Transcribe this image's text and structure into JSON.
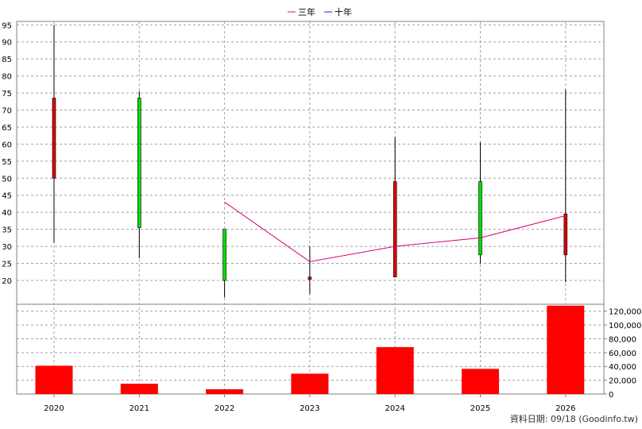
{
  "chart_data": {
    "type": "candlestick",
    "categories": [
      "2020",
      "2021",
      "2022",
      "2023",
      "2024",
      "2025",
      "2026"
    ],
    "price": {
      "ylim": [
        13,
        96
      ],
      "yticks": [
        20,
        25,
        30,
        35,
        40,
        45,
        50,
        55,
        60,
        65,
        70,
        75,
        80,
        85,
        90,
        95
      ],
      "candles": [
        {
          "year": "2020",
          "open": 50,
          "close": 73.5,
          "high": 95,
          "low": 31,
          "color": "#dd0000"
        },
        {
          "year": "2021",
          "open": 73.5,
          "close": 35.5,
          "high": 75.5,
          "low": 26.5,
          "color": "#00dd00"
        },
        {
          "year": "2022",
          "open": 35,
          "close": 20,
          "high": 35,
          "low": 15,
          "color": "#00dd00"
        },
        {
          "year": "2023",
          "open": 20.3,
          "close": 21,
          "high": 30,
          "low": 16,
          "color": "#dd0000"
        },
        {
          "year": "2024",
          "open": 21,
          "close": 49,
          "high": 62,
          "low": 21,
          "color": "#dd0000"
        },
        {
          "year": "2025",
          "open": 49,
          "close": 27.5,
          "high": 60.5,
          "low": 25,
          "color": "#00dd00"
        },
        {
          "year": "2026",
          "open": 27.5,
          "close": 39.5,
          "high": 76,
          "low": 19.5,
          "color": "#dd0000"
        }
      ],
      "series": [
        {
          "name": "三年",
          "color": "#dd0077",
          "x": [
            "2022",
            "2023",
            "2024",
            "2025",
            "2026"
          ],
          "values": [
            43,
            25.5,
            30,
            32.5,
            39
          ]
        },
        {
          "name": "十年",
          "color": "#6600cc",
          "x": [],
          "values": []
        }
      ]
    },
    "volume": {
      "ylim": [
        0,
        130000
      ],
      "yticks": [
        0,
        20000,
        40000,
        60000,
        80000,
        100000,
        120000
      ],
      "ytick_labels": [
        "0",
        "20,000",
        "40,000",
        "60,000",
        "80,000",
        "100,000",
        "120,000"
      ],
      "values": [
        41000,
        15000,
        7000,
        29500,
        68000,
        36500,
        128000
      ],
      "color": "#ff0000"
    },
    "legend_position": "top-center",
    "grid": true
  },
  "source": "資料日期: 09/18  (Goodinfo.tw)"
}
